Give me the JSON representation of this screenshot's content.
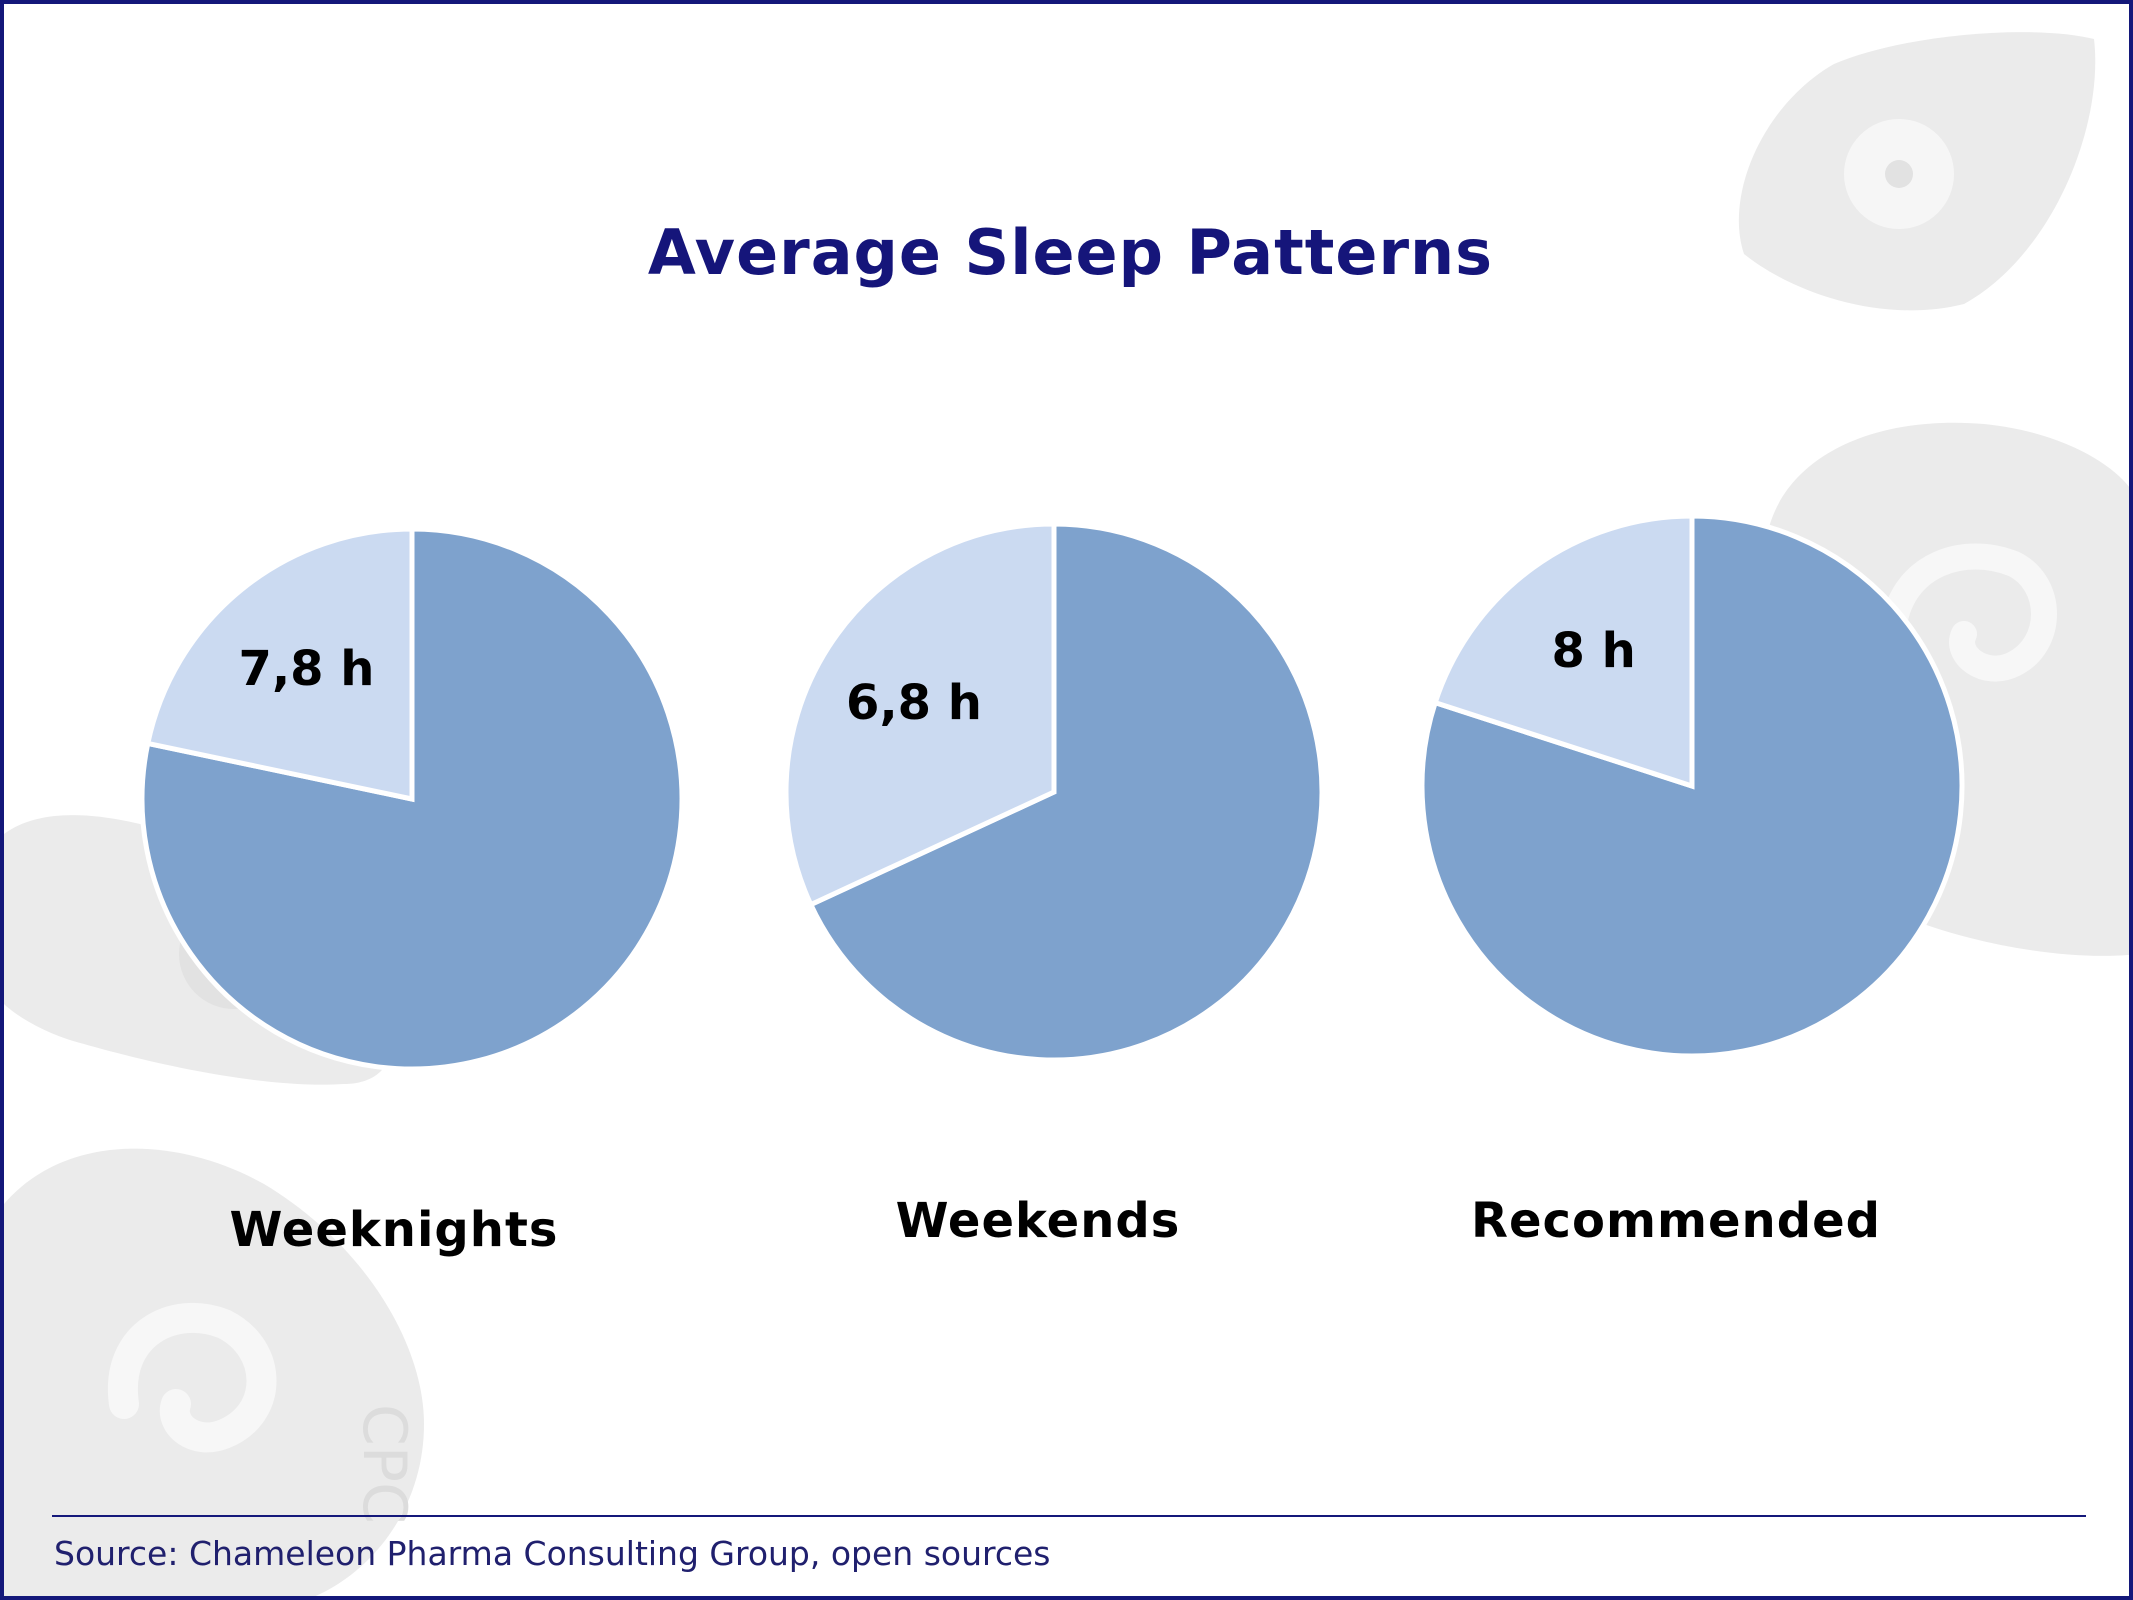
{
  "title": "Average Sleep Patterns",
  "source": "Source: Chameleon Pharma Consulting Group, open sources",
  "watermark_text": "CPC",
  "colors": {
    "frame": "#14187a",
    "title": "#15157a",
    "slice_main": "#7ea2cd",
    "slice_highlight": "#cbdaf1",
    "watermark": "#e6e6e6"
  },
  "chart_data": [
    {
      "type": "pie",
      "category": "Weeknights",
      "value_label": "7,8 h",
      "slices": [
        {
          "role": "highlight",
          "fraction": 0.217
        },
        {
          "role": "rest",
          "fraction": 0.783
        }
      ]
    },
    {
      "type": "pie",
      "category": "Weekends",
      "value_label": "6,8 h",
      "slices": [
        {
          "role": "highlight",
          "fraction": 0.319
        },
        {
          "role": "rest",
          "fraction": 0.681
        }
      ]
    },
    {
      "type": "pie",
      "category": "Recommended",
      "value_label": "8 h",
      "slices": [
        {
          "role": "highlight",
          "fraction": 0.2
        },
        {
          "role": "rest",
          "fraction": 0.8
        }
      ]
    }
  ]
}
